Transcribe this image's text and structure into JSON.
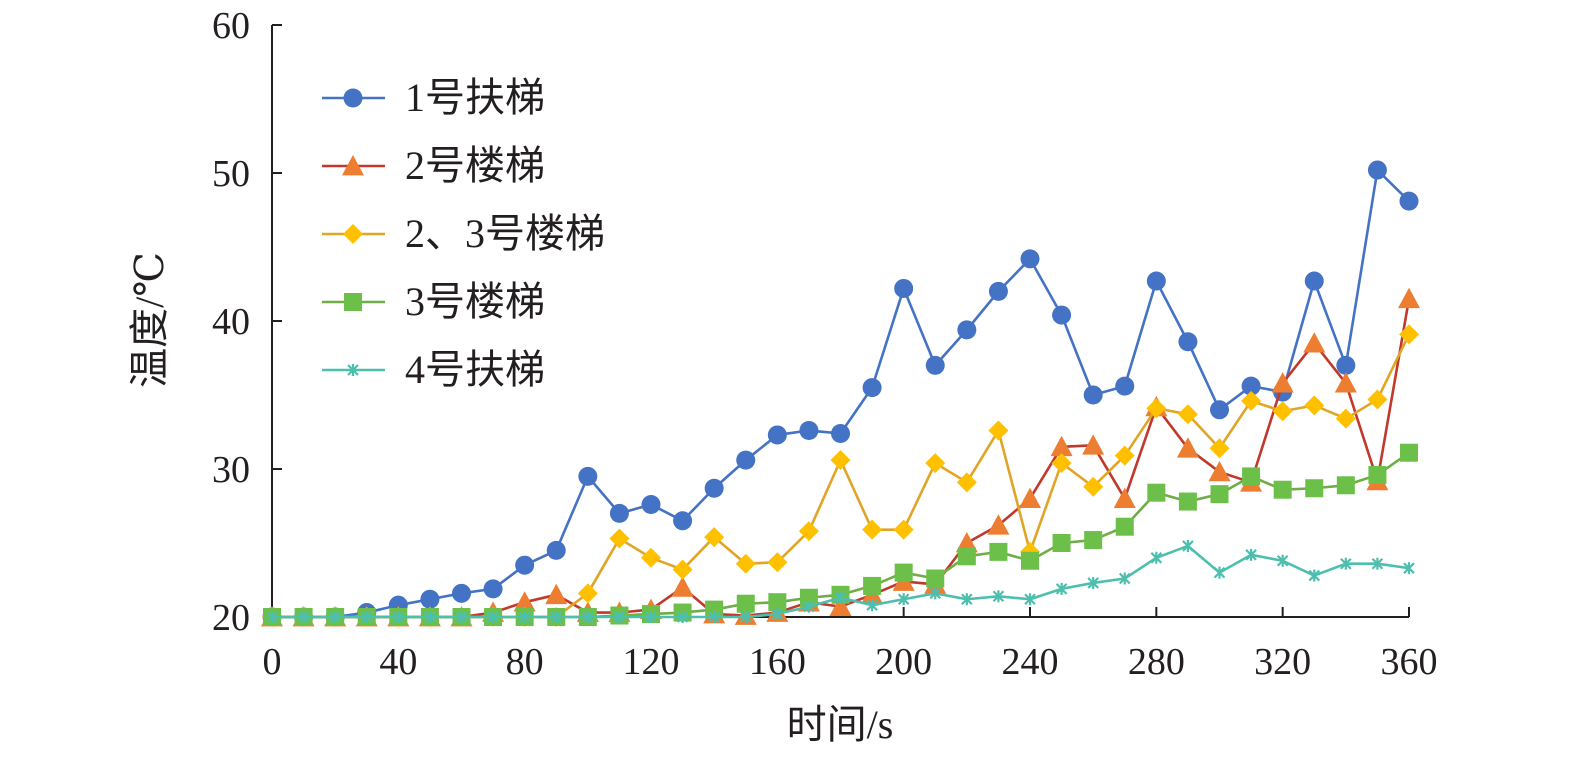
{
  "chart_data": {
    "type": "line",
    "xlabel": "时间/s",
    "ylabel": "温度/℃",
    "xlim": [
      0,
      360
    ],
    "ylim": [
      20,
      60
    ],
    "xticks": [
      0,
      40,
      80,
      120,
      160,
      200,
      240,
      280,
      320,
      360
    ],
    "yticks": [
      20,
      30,
      40,
      50,
      60
    ],
    "grid": false,
    "legend_position": "top-left",
    "x": [
      0,
      10,
      20,
      30,
      40,
      50,
      60,
      70,
      80,
      90,
      100,
      110,
      120,
      130,
      140,
      150,
      160,
      170,
      180,
      190,
      200,
      210,
      220,
      230,
      240,
      250,
      260,
      270,
      280,
      290,
      300,
      310,
      320,
      330,
      340,
      350,
      360
    ],
    "series": [
      {
        "name": "1号扶梯",
        "color": "#4472c4",
        "marker": "circle",
        "values": [
          20,
          20,
          20,
          20.3,
          20.8,
          21.2,
          21.6,
          21.9,
          23.5,
          24.5,
          29.5,
          27,
          27.6,
          26.5,
          28.7,
          30.6,
          32.3,
          32.6,
          32.4,
          35.5,
          42.2,
          37,
          39.4,
          42,
          44.2,
          40.4,
          35,
          35.6,
          42.7,
          38.6,
          34,
          35.6,
          35.2,
          42.7,
          37,
          50.2,
          48.1
        ]
      },
      {
        "name": "2号楼梯",
        "color": "#c0392b",
        "markerColor": "#ed7d31",
        "marker": "triangle",
        "values": [
          20,
          20,
          20,
          20,
          20,
          20,
          20,
          20.3,
          21,
          21.5,
          20.3,
          20.3,
          20.5,
          22,
          20.2,
          20.1,
          20.3,
          21,
          20.7,
          21.5,
          22.4,
          22.2,
          25,
          26.2,
          28,
          31.5,
          31.6,
          28,
          34.2,
          31.4,
          29.8,
          29.1,
          35.8,
          38.5,
          35.8,
          29.2,
          41.5
        ]
      },
      {
        "name": "2、3号楼梯",
        "color": "#e0a526",
        "markerColor": "#ffc000",
        "marker": "diamond",
        "values": [
          20,
          20,
          20,
          20,
          20,
          20,
          20,
          20,
          20,
          20,
          21.6,
          25.3,
          24,
          23.2,
          25.4,
          23.6,
          23.7,
          25.8,
          30.6,
          25.9,
          25.9,
          30.4,
          29.1,
          32.6,
          24.4,
          30.4,
          28.8,
          30.9,
          34.1,
          33.7,
          31.4,
          34.6,
          33.9,
          34.3,
          33.4,
          34.7,
          39.1
        ]
      },
      {
        "name": "3号楼梯",
        "color": "#70ad47",
        "markerColor": "#6cc04a",
        "marker": "square",
        "values": [
          20,
          20,
          20,
          20,
          20,
          20,
          20,
          20,
          20,
          20,
          20,
          20.1,
          20.2,
          20.3,
          20.5,
          20.9,
          21,
          21.3,
          21.5,
          22.1,
          23,
          22.6,
          24.1,
          24.4,
          23.8,
          25,
          25.2,
          26.1,
          28.4,
          27.8,
          28.3,
          29.5,
          28.6,
          28.7,
          28.9,
          29.6,
          31.1
        ]
      },
      {
        "name": "4号扶梯",
        "color": "#4dbfae",
        "marker": "star",
        "values": [
          20,
          20,
          20,
          20,
          20,
          20,
          20,
          20,
          20,
          20,
          20,
          20,
          20,
          20,
          20,
          20,
          20.2,
          20.7,
          21.3,
          20.8,
          21.2,
          21.6,
          21.2,
          21.4,
          21.2,
          21.9,
          22.3,
          22.6,
          24,
          24.8,
          23,
          24.2,
          23.8,
          22.8,
          23.6,
          23.6,
          23.3
        ]
      }
    ]
  }
}
